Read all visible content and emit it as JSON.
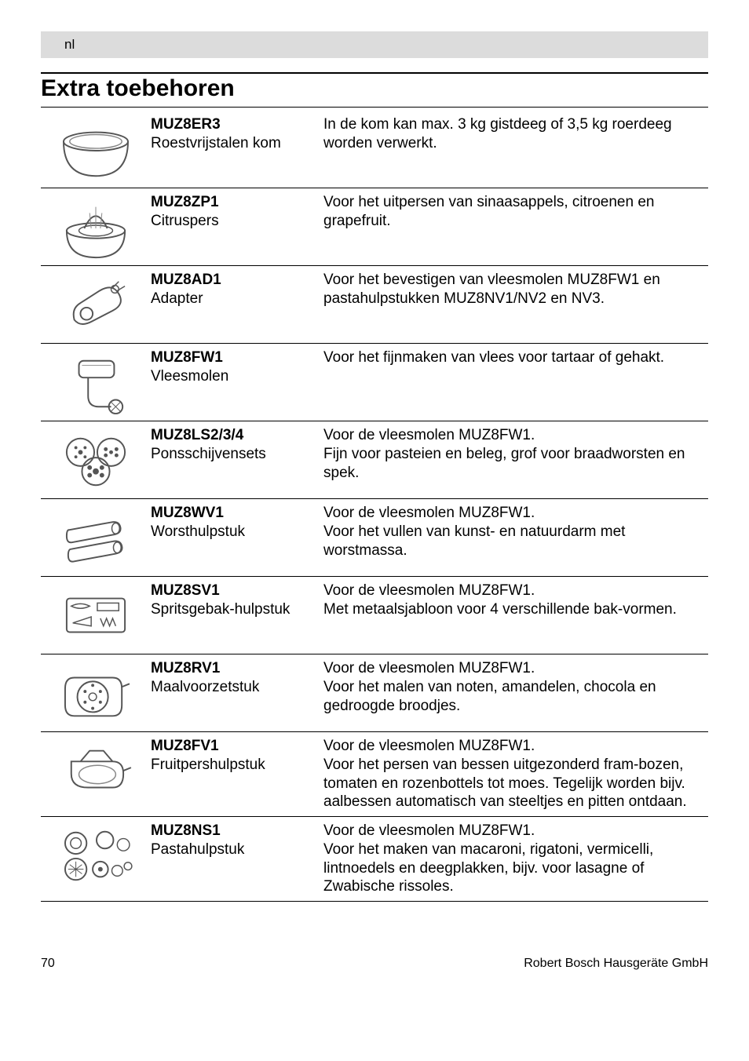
{
  "header": {
    "lang_tab": "nl"
  },
  "section_title": "Extra toebehoren",
  "accessories": [
    {
      "model": "MUZ8ER3",
      "sub": "Roestvrijstalen kom",
      "desc": "In de kom kan max. 3 kg gistdeeg of 3,5 kg roerdeeg worden verwerkt.",
      "icon": "bowl"
    },
    {
      "model": "MUZ8ZP1",
      "sub": "Citruspers",
      "desc": "Voor het uitpersen van sinaasappels, citroenen en grapefruit.",
      "icon": "citrus"
    },
    {
      "model": "MUZ8AD1",
      "sub": "Adapter",
      "desc": "Voor het bevestigen van vleesmolen MUZ8FW1 en pastahulpstukken MUZ8NV1/NV2 en NV3.",
      "icon": "adapter"
    },
    {
      "model": "MUZ8FW1",
      "sub": "Vleesmolen",
      "desc": "Voor het fijnmaken van vlees voor tartaar of gehakt.",
      "icon": "mincer"
    },
    {
      "model": "MUZ8LS2/3/4",
      "sub": "Ponsschijvensets",
      "desc": "Voor de vleesmolen MUZ8FW1.\nFijn voor pasteien en beleg, grof voor braadworsten en spek.",
      "icon": "discs"
    },
    {
      "model": "MUZ8WV1",
      "sub": "Worsthulpstuk",
      "desc": "Voor de vleesmolen MUZ8FW1.\nVoor het vullen van kunst- en natuurdarm met worstmassa.",
      "icon": "sausage"
    },
    {
      "model": "MUZ8SV1",
      "sub": "Spritsgebak-hulpstuk",
      "desc": "Voor de vleesmolen MUZ8FW1.\nMet metaalsjabloon voor 4 verschillende bak-vormen.",
      "icon": "sprits"
    },
    {
      "model": "MUZ8RV1",
      "sub": "Maalvoorzetstuk",
      "desc": "Voor de vleesmolen MUZ8FW1.\nVoor het malen van noten, amandelen, chocola en gedroogde broodjes.",
      "icon": "grater"
    },
    {
      "model": "MUZ8FV1",
      "sub": "Fruitpershulpstuk",
      "desc": "Voor de vleesmolen MUZ8FW1.\nVoor het persen van bessen uitgezonderd fram-bozen, tomaten en rozenbottels tot moes. Tegelijk worden bijv. aalbessen automatisch van steeltjes en pitten ontdaan.",
      "icon": "fruit"
    },
    {
      "model": "MUZ8NS1",
      "sub": "Pastahulpstuk",
      "desc": "Voor de vleesmolen MUZ8FW1.\nVoor het maken van macaroni, rigatoni, vermicelli, lintnoedels en deegplakken, bijv. voor lasagne of Zwabische rissoles.",
      "icon": "pasta"
    }
  ],
  "footer": {
    "page_number": "70",
    "company": "Robert Bosch Hausgeräte GmbH"
  },
  "style": {
    "background_color": "#ffffff",
    "text_color": "#000000",
    "tab_background": "#dcdcdc",
    "rule_color": "#000000",
    "body_fontsize_pt": 14,
    "title_fontsize_pt": 22,
    "font_family": "Arial"
  }
}
